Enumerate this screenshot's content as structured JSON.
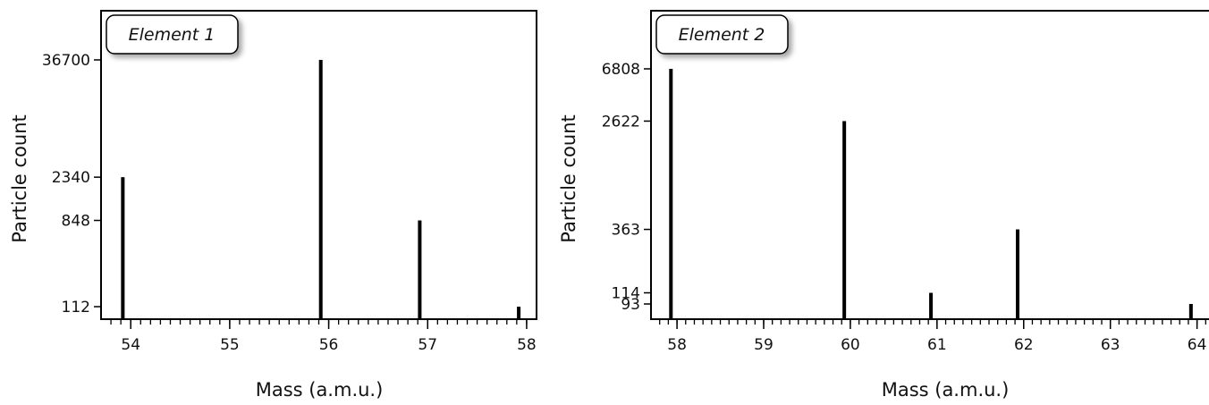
{
  "chart_data": [
    {
      "type": "bar",
      "tag": "Element 1",
      "xlabel": "Mass (a.m.u.)",
      "ylabel": "Particle count",
      "xlim": [
        53.7,
        58.1
      ],
      "x_ticks": [
        "54",
        "55",
        "56",
        "57",
        "58"
      ],
      "y_scale": "log",
      "y_ticks": [
        "112",
        "848",
        "2340",
        "36700"
      ],
      "x": [
        53.92,
        55.92,
        56.92,
        57.92
      ],
      "values": [
        2340,
        36700,
        848,
        112
      ]
    },
    {
      "type": "bar",
      "tag": "Element 2",
      "xlabel": "Mass (a.m.u.)",
      "ylabel": "Particle count",
      "xlim": [
        57.7,
        64.2
      ],
      "x_ticks": [
        "58",
        "59",
        "60",
        "61",
        "62",
        "63",
        "64"
      ],
      "y_scale": "log",
      "y_ticks": [
        "93",
        "114",
        "363",
        "2622",
        "6808"
      ],
      "x": [
        57.93,
        59.93,
        60.93,
        61.93,
        63.93
      ],
      "values": [
        6808,
        2622,
        114,
        363,
        93
      ]
    }
  ]
}
